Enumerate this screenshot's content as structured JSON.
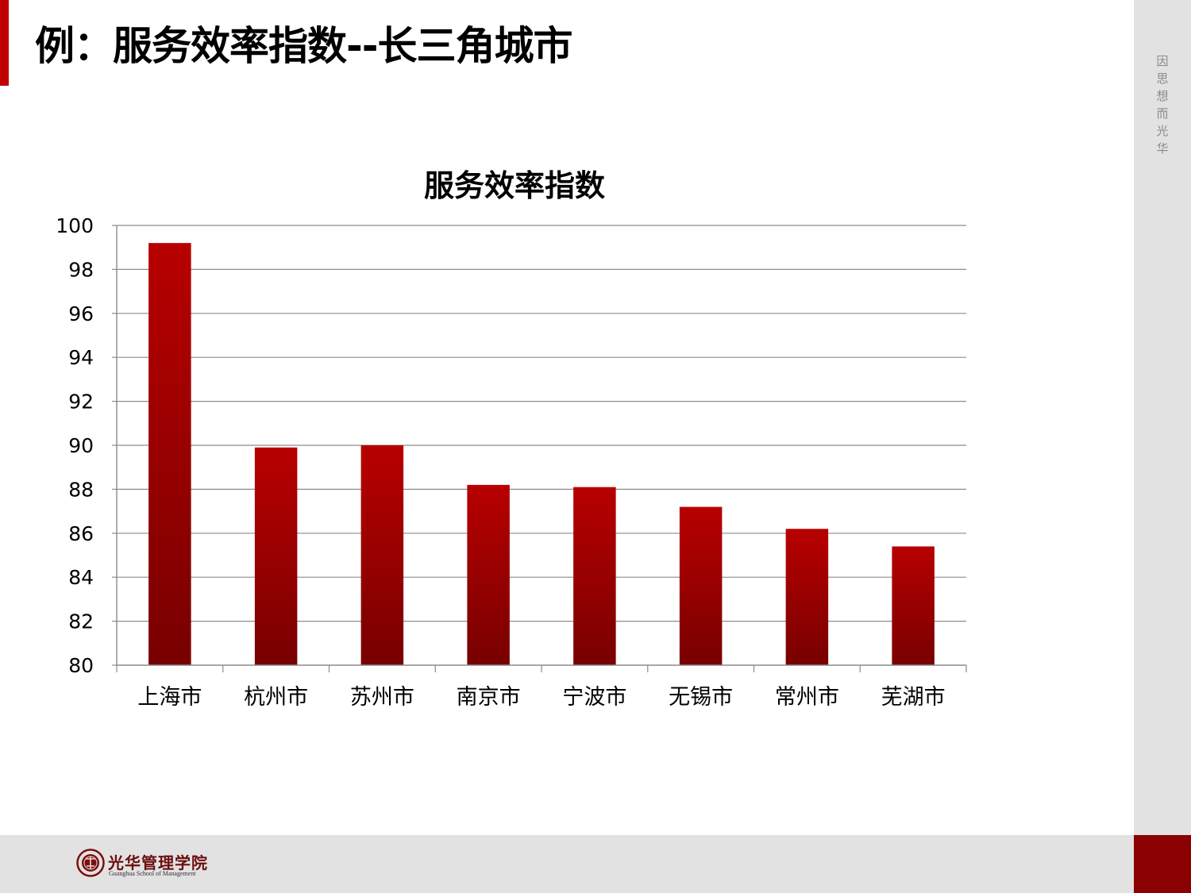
{
  "slide": {
    "title": "例：服务效率指数--长三角城市",
    "motto": "因\n思\n想\n而\n光\n华",
    "logo_cn": "光华管理学院",
    "logo_en": "Guanghua School of Management"
  },
  "colors": {
    "accent": "#c00000",
    "bar_top": "#b80000",
    "bar_bottom": "#780000",
    "gridline": "#8c8c8c"
  },
  "chart_data": {
    "type": "bar",
    "title": "服务效率指数",
    "categories": [
      "上海市",
      "杭州市",
      "苏州市",
      "南京市",
      "宁波市",
      "无锡市",
      "常州市",
      "芜湖市"
    ],
    "values": [
      99.2,
      89.9,
      90.0,
      88.2,
      88.1,
      87.2,
      86.2,
      85.4
    ],
    "ylim": [
      80,
      100
    ],
    "yticks": [
      "80",
      "82",
      "84",
      "86",
      "88",
      "90",
      "92",
      "94",
      "96",
      "98",
      "100"
    ],
    "grid": true,
    "legend": "none"
  }
}
